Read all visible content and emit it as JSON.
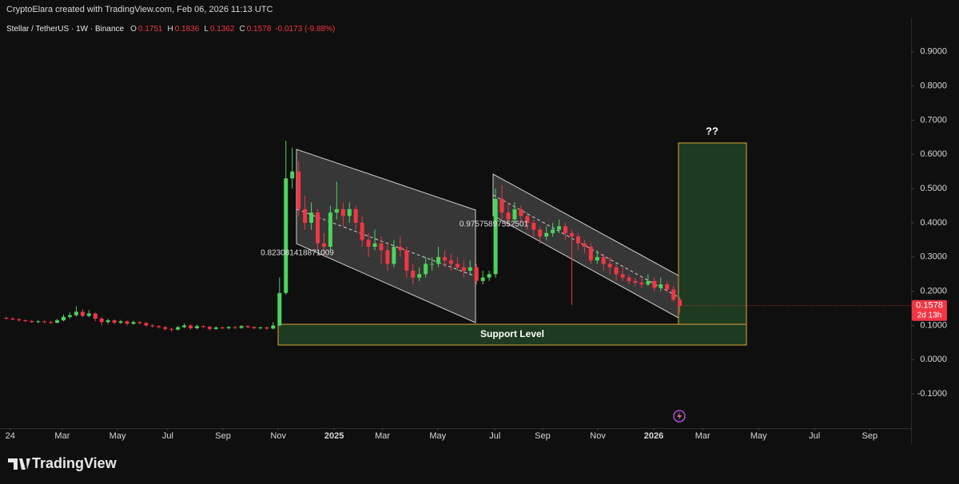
{
  "header": {
    "credit": "CryptoElara created with TradingView.com, Feb 06, 2026 11:13 UTC"
  },
  "chart_data": {
    "type": "candlestick",
    "symbol": "Stellar / TetherUS · 1W · Binance",
    "ohlc_letters": [
      "O",
      "H",
      "L",
      "C"
    ],
    "change_label": "-0.0173 (-9.88%)",
    "countdown": "2d 13h",
    "up_color": "#4cd45a",
    "down_color": "#f23645",
    "annotations": [
      "0.823081418871009",
      "0.97575897552501",
      "Support Level",
      "??"
    ],
    "ylim": [
      -0.2,
      1.0
    ],
    "yticks": [
      {
        "value": 0.9,
        "label": "0.9000"
      },
      {
        "value": 0.8,
        "label": "0.8000"
      },
      {
        "value": 0.7,
        "label": "0.7000"
      },
      {
        "value": 0.6,
        "label": "0.6000"
      },
      {
        "value": 0.5,
        "label": "0.5000"
      },
      {
        "value": 0.4,
        "label": "0.4000"
      },
      {
        "value": 0.3,
        "label": "0.3000"
      },
      {
        "value": 0.2,
        "label": "0.2000"
      },
      {
        "value": 0.1,
        "label": "0.1000"
      },
      {
        "value": 0,
        "label": "0.0000"
      },
      {
        "value": -0.1,
        "label": "-0.1000"
      }
    ],
    "xlim": [
      -1,
      142.4
    ],
    "xticks": [
      {
        "value": 0.6,
        "label": "24"
      },
      {
        "value": 8.8,
        "label": "Mar"
      },
      {
        "value": 17.5,
        "label": "May"
      },
      {
        "value": 25.4,
        "label": "Jul"
      },
      {
        "value": 34.1,
        "label": "Sep"
      },
      {
        "value": 42.8,
        "label": "Nov"
      },
      {
        "value": 51.6,
        "label": "2025"
      },
      {
        "value": 59.2,
        "label": "Mar"
      },
      {
        "value": 67.9,
        "label": "May"
      },
      {
        "value": 76.9,
        "label": "Jul"
      },
      {
        "value": 84.4,
        "label": "Sep"
      },
      {
        "value": 93.1,
        "label": "Nov"
      },
      {
        "value": 101.9,
        "label": "2026"
      },
      {
        "value": 109.6,
        "label": "Mar"
      },
      {
        "value": 118.4,
        "label": "May"
      },
      {
        "value": 127.2,
        "label": "Jul"
      },
      {
        "value": 135.9,
        "label": "Sep"
      }
    ],
    "candles": [
      [
        0.122,
        0.126,
        0.117,
        0.12
      ],
      [
        0.12,
        0.124,
        0.115,
        0.118
      ],
      [
        0.118,
        0.121,
        0.112,
        0.115
      ],
      [
        0.115,
        0.118,
        0.11,
        0.113
      ],
      [
        0.113,
        0.116,
        0.107,
        0.11
      ],
      [
        0.11,
        0.116,
        0.107,
        0.112
      ],
      [
        0.112,
        0.115,
        0.106,
        0.11
      ],
      [
        0.11,
        0.114,
        0.104,
        0.108
      ],
      [
        0.108,
        0.12,
        0.106,
        0.115
      ],
      [
        0.115,
        0.132,
        0.112,
        0.125
      ],
      [
        0.125,
        0.138,
        0.12,
        0.13
      ],
      [
        0.13,
        0.156,
        0.126,
        0.14
      ],
      [
        0.14,
        0.148,
        0.124,
        0.128
      ],
      [
        0.128,
        0.145,
        0.124,
        0.135
      ],
      [
        0.135,
        0.138,
        0.112,
        0.12
      ],
      [
        0.12,
        0.125,
        0.1,
        0.11
      ],
      [
        0.11,
        0.12,
        0.105,
        0.115
      ],
      [
        0.115,
        0.118,
        0.103,
        0.108
      ],
      [
        0.108,
        0.116,
        0.104,
        0.112
      ],
      [
        0.112,
        0.115,
        0.1,
        0.105
      ],
      [
        0.105,
        0.114,
        0.102,
        0.11
      ],
      [
        0.11,
        0.113,
        0.103,
        0.107
      ],
      [
        0.107,
        0.11,
        0.097,
        0.1
      ],
      [
        0.1,
        0.104,
        0.094,
        0.098
      ],
      [
        0.098,
        0.101,
        0.091,
        0.095
      ],
      [
        0.095,
        0.098,
        0.085,
        0.09
      ],
      [
        0.09,
        0.093,
        0.082,
        0.088
      ],
      [
        0.088,
        0.099,
        0.085,
        0.095
      ],
      [
        0.095,
        0.106,
        0.092,
        0.1
      ],
      [
        0.1,
        0.103,
        0.088,
        0.092
      ],
      [
        0.092,
        0.102,
        0.089,
        0.098
      ],
      [
        0.098,
        0.101,
        0.092,
        0.096
      ],
      [
        0.096,
        0.099,
        0.085,
        0.09
      ],
      [
        0.09,
        0.098,
        0.087,
        0.094
      ],
      [
        0.094,
        0.097,
        0.089,
        0.092
      ],
      [
        0.092,
        0.099,
        0.089,
        0.095
      ],
      [
        0.095,
        0.098,
        0.09,
        0.093
      ],
      [
        0.093,
        0.101,
        0.09,
        0.098
      ],
      [
        0.098,
        0.101,
        0.092,
        0.095
      ],
      [
        0.095,
        0.098,
        0.089,
        0.092
      ],
      [
        0.092,
        0.097,
        0.089,
        0.094
      ],
      [
        0.094,
        0.097,
        0.088,
        0.091
      ],
      [
        0.091,
        0.11,
        0.089,
        0.1
      ],
      [
        0.1,
        0.24,
        0.098,
        0.195
      ],
      [
        0.195,
        0.64,
        0.19,
        0.53
      ],
      [
        0.53,
        0.62,
        0.5,
        0.55
      ],
      [
        0.55,
        0.58,
        0.42,
        0.44
      ],
      [
        0.44,
        0.48,
        0.38,
        0.4
      ],
      [
        0.4,
        0.46,
        0.38,
        0.43
      ],
      [
        0.43,
        0.44,
        0.32,
        0.34
      ],
      [
        0.34,
        0.37,
        0.3,
        0.33
      ],
      [
        0.33,
        0.45,
        0.32,
        0.43
      ],
      [
        0.43,
        0.52,
        0.41,
        0.44
      ],
      [
        0.44,
        0.46,
        0.39,
        0.42
      ],
      [
        0.42,
        0.46,
        0.4,
        0.44
      ],
      [
        0.44,
        0.45,
        0.38,
        0.4
      ],
      [
        0.4,
        0.42,
        0.33,
        0.35
      ],
      [
        0.35,
        0.37,
        0.3,
        0.33
      ],
      [
        0.33,
        0.38,
        0.32,
        0.34
      ],
      [
        0.34,
        0.36,
        0.28,
        0.32
      ],
      [
        0.32,
        0.34,
        0.26,
        0.28
      ],
      [
        0.28,
        0.35,
        0.27,
        0.33
      ],
      [
        0.33,
        0.36,
        0.3,
        0.32
      ],
      [
        0.32,
        0.33,
        0.24,
        0.26
      ],
      [
        0.26,
        0.28,
        0.22,
        0.24
      ],
      [
        0.24,
        0.27,
        0.23,
        0.25
      ],
      [
        0.25,
        0.3,
        0.24,
        0.28
      ],
      [
        0.28,
        0.3,
        0.26,
        0.28
      ],
      [
        0.28,
        0.33,
        0.27,
        0.3
      ],
      [
        0.3,
        0.32,
        0.27,
        0.29
      ],
      [
        0.29,
        0.31,
        0.26,
        0.28
      ],
      [
        0.28,
        0.3,
        0.26,
        0.27
      ],
      [
        0.27,
        0.29,
        0.24,
        0.26
      ],
      [
        0.26,
        0.29,
        0.25,
        0.27
      ],
      [
        0.27,
        0.28,
        0.22,
        0.23
      ],
      [
        0.23,
        0.26,
        0.22,
        0.24
      ],
      [
        0.24,
        0.26,
        0.23,
        0.25
      ],
      [
        0.25,
        0.5,
        0.24,
        0.47
      ],
      [
        0.47,
        0.51,
        0.41,
        0.43
      ],
      [
        0.43,
        0.46,
        0.39,
        0.41
      ],
      [
        0.41,
        0.46,
        0.4,
        0.44
      ],
      [
        0.44,
        0.45,
        0.4,
        0.42
      ],
      [
        0.42,
        0.43,
        0.38,
        0.4
      ],
      [
        0.4,
        0.41,
        0.36,
        0.38
      ],
      [
        0.38,
        0.39,
        0.34,
        0.36
      ],
      [
        0.36,
        0.39,
        0.35,
        0.37
      ],
      [
        0.37,
        0.4,
        0.36,
        0.38
      ],
      [
        0.38,
        0.41,
        0.37,
        0.39
      ],
      [
        0.39,
        0.4,
        0.35,
        0.37
      ],
      [
        0.37,
        0.38,
        0.16,
        0.36
      ],
      [
        0.36,
        0.37,
        0.32,
        0.34
      ],
      [
        0.34,
        0.35,
        0.31,
        0.33
      ],
      [
        0.33,
        0.34,
        0.28,
        0.29
      ],
      [
        0.29,
        0.32,
        0.28,
        0.3
      ],
      [
        0.3,
        0.31,
        0.26,
        0.28
      ],
      [
        0.28,
        0.3,
        0.25,
        0.27
      ],
      [
        0.27,
        0.28,
        0.23,
        0.25
      ],
      [
        0.25,
        0.27,
        0.23,
        0.24
      ],
      [
        0.24,
        0.25,
        0.22,
        0.23
      ],
      [
        0.23,
        0.24,
        0.215,
        0.225
      ],
      [
        0.225,
        0.24,
        0.21,
        0.22
      ],
      [
        0.22,
        0.25,
        0.215,
        0.23
      ],
      [
        0.23,
        0.24,
        0.2,
        0.21
      ],
      [
        0.21,
        0.24,
        0.2,
        0.22
      ],
      [
        0.22,
        0.23,
        0.195,
        0.205
      ],
      [
        0.205,
        0.215,
        0.17,
        0.1751
      ],
      [
        0.1751,
        0.1836,
        0.1362,
        0.1578
      ]
    ]
  },
  "footer": {
    "brand": "TradingView"
  }
}
